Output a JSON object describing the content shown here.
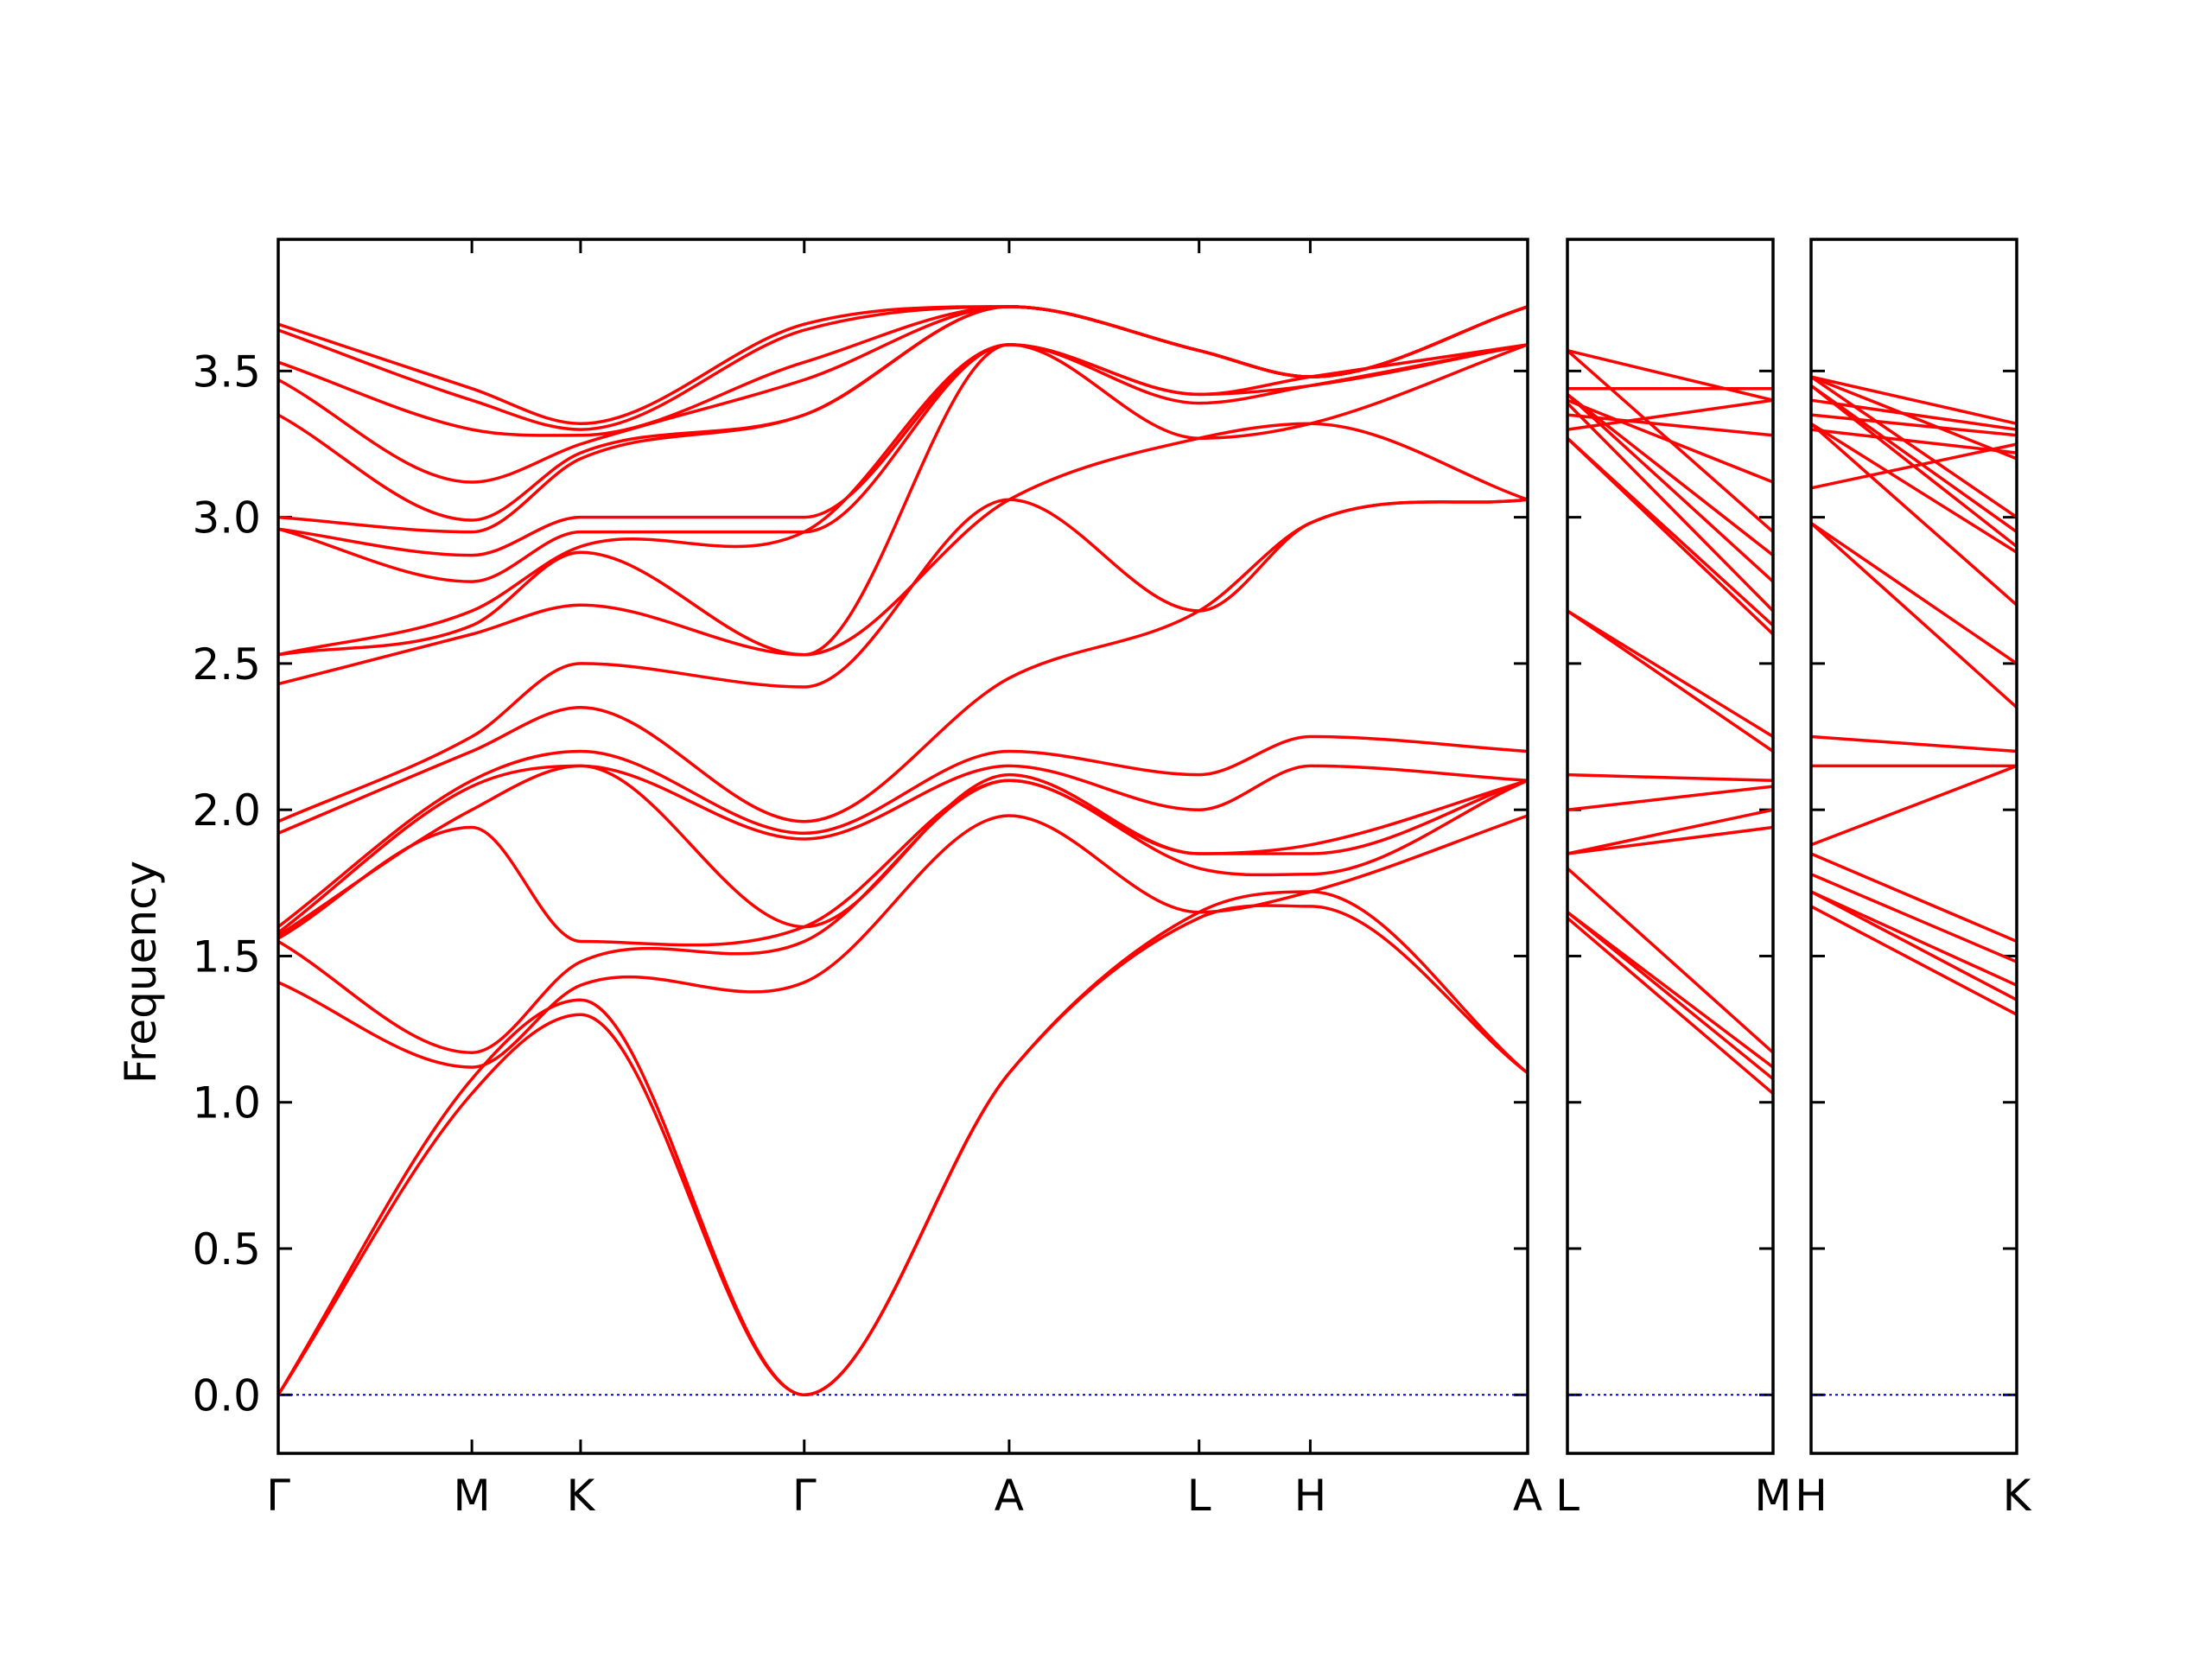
{
  "colors": {
    "band": "#ff0000",
    "zero_line": "#0000cc",
    "frame": "#000000"
  },
  "chart_data": {
    "type": "line",
    "title": "",
    "ylabel": "Frequency",
    "ylim": [
      -0.2,
      3.95
    ],
    "yticks": [
      "0.0",
      "0.5",
      "1.0",
      "1.5",
      "2.0",
      "2.5",
      "3.0",
      "3.5"
    ],
    "zero_line": {
      "y": 0.0,
      "style": "dotted"
    },
    "panels": [
      {
        "id": "main",
        "points": [
          {
            "label": "Γ",
            "x": 0.0
          },
          {
            "label": "M",
            "x": 0.155
          },
          {
            "label": "K",
            "x": 0.242
          },
          {
            "label": "Γ",
            "x": 0.421
          },
          {
            "label": "A",
            "x": 0.585
          },
          {
            "label": "L",
            "x": 0.737
          },
          {
            "label": "H",
            "x": 0.826
          },
          {
            "label": "A",
            "x": 1.0
          }
        ],
        "bands": [
          [
            0.0,
            1.03,
            1.3,
            0.0,
            1.1,
            1.63,
            1.67,
            1.1
          ],
          [
            0.0,
            1.08,
            1.35,
            0.0,
            1.1,
            1.65,
            1.72,
            1.1
          ],
          [
            1.41,
            1.12,
            1.4,
            1.41,
            1.98,
            1.65,
            1.72,
            1.98
          ],
          [
            1.55,
            1.17,
            1.48,
            1.55,
            2.1,
            1.8,
            1.78,
            2.1
          ],
          [
            1.56,
            1.94,
            1.55,
            1.6,
            2.1,
            1.85,
            1.85,
            2.1
          ],
          [
            1.57,
            2.0,
            2.15,
            1.6,
            2.12,
            1.85,
            1.88,
            2.1
          ],
          [
            1.58,
            2.08,
            2.15,
            1.9,
            2.15,
            2.0,
            2.15,
            2.1
          ],
          [
            1.6,
            2.1,
            2.2,
            1.92,
            2.2,
            2.12,
            2.25,
            2.2
          ],
          [
            1.92,
            2.2,
            2.35,
            1.96,
            2.45,
            2.68,
            2.98,
            3.06
          ],
          [
            1.96,
            2.25,
            2.5,
            2.42,
            3.06,
            2.68,
            2.98,
            3.06
          ],
          [
            2.43,
            2.6,
            2.7,
            2.53,
            3.06,
            3.27,
            3.32,
            3.06
          ],
          [
            2.53,
            2.63,
            2.88,
            2.53,
            3.59,
            3.27,
            3.32,
            3.59
          ],
          [
            2.53,
            2.68,
            2.9,
            2.95,
            3.59,
            3.39,
            3.45,
            3.59
          ],
          [
            2.96,
            2.78,
            2.95,
            2.95,
            3.59,
            3.42,
            3.45,
            3.59
          ],
          [
            2.96,
            2.87,
            3.0,
            3.0,
            3.59,
            3.42,
            3.48,
            3.59
          ],
          [
            3.0,
            2.95,
            3.2,
            3.35,
            3.72,
            3.57,
            3.48,
            3.72
          ],
          [
            3.35,
            2.99,
            3.22,
            3.35,
            3.72,
            3.57,
            3.48,
            3.72
          ],
          [
            3.47,
            3.12,
            3.25,
            3.47,
            3.72,
            3.57,
            3.48,
            3.72
          ],
          [
            3.53,
            3.3,
            3.28,
            3.53,
            3.72,
            3.57,
            3.48,
            3.72
          ],
          [
            3.64,
            3.4,
            3.3,
            3.64,
            3.72,
            3.57,
            3.48,
            3.72
          ],
          [
            3.66,
            3.44,
            3.32,
            3.66,
            3.72,
            3.57,
            3.48,
            3.72
          ]
        ]
      },
      {
        "id": "L-M",
        "points": [
          {
            "label": "L",
            "x": 0.0
          },
          {
            "label": "M",
            "x": 1.0
          }
        ],
        "bands": [
          [
            1.63,
            1.03
          ],
          [
            1.65,
            1.08
          ],
          [
            1.65,
            1.12
          ],
          [
            1.8,
            1.17
          ],
          [
            1.85,
            1.94
          ],
          [
            1.85,
            2.0
          ],
          [
            2.0,
            2.08
          ],
          [
            2.12,
            2.1
          ],
          [
            2.68,
            2.2
          ],
          [
            2.68,
            2.25
          ],
          [
            3.27,
            2.6
          ],
          [
            3.27,
            2.63
          ],
          [
            3.39,
            2.68
          ],
          [
            3.42,
            2.78
          ],
          [
            3.42,
            2.87
          ],
          [
            3.57,
            2.95
          ],
          [
            3.4,
            3.12
          ],
          [
            3.35,
            3.28
          ],
          [
            3.3,
            3.4
          ],
          [
            3.44,
            3.44
          ],
          [
            3.57,
            3.4
          ]
        ]
      },
      {
        "id": "H-K",
        "points": [
          {
            "label": "H",
            "x": 0.0
          },
          {
            "label": "K",
            "x": 1.0
          }
        ],
        "bands": [
          [
            1.67,
            1.3
          ],
          [
            1.72,
            1.35
          ],
          [
            1.72,
            1.4
          ],
          [
            1.78,
            1.48
          ],
          [
            1.85,
            1.55
          ],
          [
            1.88,
            2.15
          ],
          [
            2.15,
            2.15
          ],
          [
            2.25,
            2.2
          ],
          [
            2.98,
            2.35
          ],
          [
            2.98,
            2.5
          ],
          [
            3.32,
            2.7
          ],
          [
            3.32,
            2.88
          ],
          [
            3.45,
            2.9
          ],
          [
            3.45,
            2.95
          ],
          [
            3.48,
            3.0
          ],
          [
            3.48,
            3.2
          ],
          [
            3.3,
            3.22
          ],
          [
            3.1,
            3.25
          ],
          [
            3.35,
            3.28
          ],
          [
            3.4,
            3.3
          ],
          [
            3.48,
            3.32
          ]
        ]
      }
    ]
  }
}
